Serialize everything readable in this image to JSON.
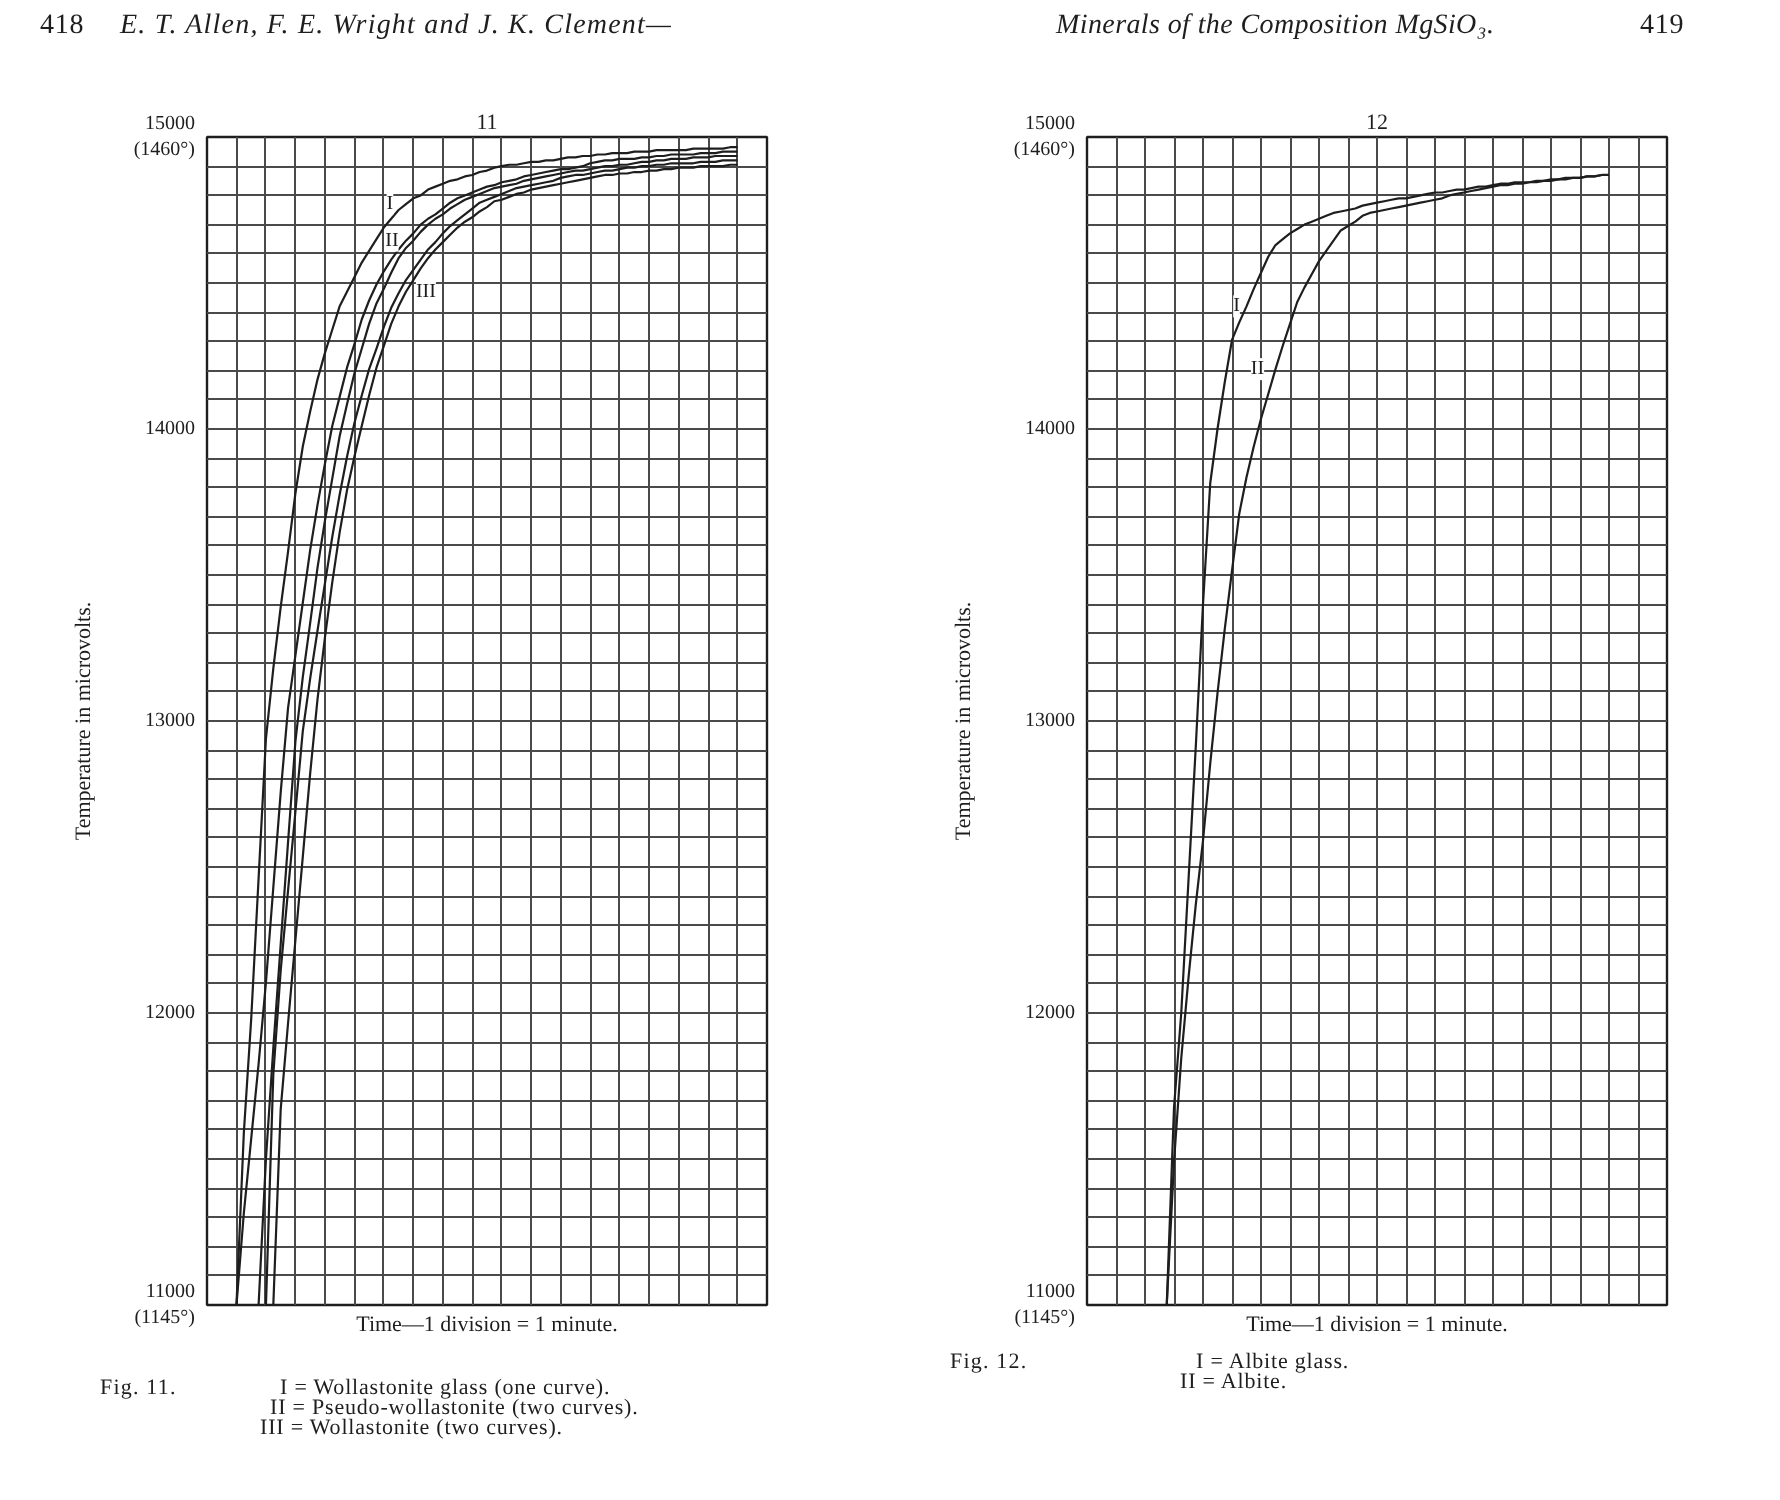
{
  "chart_data": [
    {
      "type": "line",
      "title": "11",
      "xlabel": "Time—1 division = 1 minute.",
      "ylabel": "Temperature in microvolts.",
      "categories": [
        null,
        null,
        null,
        null,
        null,
        null,
        null,
        null,
        null,
        null,
        null,
        null,
        null,
        null,
        null,
        null,
        null,
        null,
        null,
        null,
        null,
        null,
        null,
        null,
        null,
        null,
        null,
        null,
        null,
        null,
        null,
        null,
        null,
        null,
        null,
        null,
        null,
        null,
        null,
        null,
        null,
        null,
        null,
        null,
        null,
        null,
        null,
        null,
        null,
        null,
        null,
        null,
        null,
        null,
        null,
        null,
        null,
        null,
        null,
        null,
        null,
        null,
        null,
        null,
        null,
        null,
        null,
        null,
        null,
        null,
        null,
        null,
        null,
        null,
        null,
        null,
        null
      ],
      "ylim": [
        11000,
        15000
      ],
      "yticks": [
        {
          "value": 11000,
          "label": "11000\n(1145°)"
        },
        {
          "value": 11100,
          "label": null
        },
        {
          "value": 11200,
          "label": null
        },
        {
          "value": 11300,
          "label": null
        },
        {
          "value": 11400,
          "label": null
        },
        {
          "value": 11500,
          "label": null
        },
        {
          "value": 11600,
          "label": null
        },
        {
          "value": 11700,
          "label": null
        },
        {
          "value": 11800,
          "label": null
        },
        {
          "value": 11900,
          "label": null
        },
        12000,
        {
          "value": 12100,
          "label": null
        },
        {
          "value": 12200,
          "label": null
        },
        {
          "value": 12300,
          "label": null
        },
        {
          "value": 12400,
          "label": null
        },
        {
          "value": 12500,
          "label": null
        },
        {
          "value": 12600,
          "label": null
        },
        {
          "value": 12700,
          "label": null
        },
        {
          "value": 12800,
          "label": null
        },
        {
          "value": 12900,
          "label": null
        },
        13000,
        {
          "value": 13100,
          "label": null
        },
        {
          "value": 13200,
          "label": null
        },
        {
          "value": 13300,
          "label": null
        },
        {
          "value": 13400,
          "label": null
        },
        {
          "value": 13500,
          "label": null
        },
        {
          "value": 13600,
          "label": null
        },
        {
          "value": 13700,
          "label": null
        },
        {
          "value": 13800,
          "label": null
        },
        {
          "value": 13900,
          "label": null
        },
        14000,
        {
          "value": 14100,
          "label": null
        },
        {
          "value": 14200,
          "label": null
        },
        {
          "value": 14300,
          "label": null
        },
        {
          "value": 14400,
          "label": null
        },
        {
          "value": 14500,
          "label": null
        },
        {
          "value": 14600,
          "label": null
        },
        {
          "value": 14700,
          "label": null
        },
        {
          "value": 14800,
          "label": null
        },
        {
          "value": 14900,
          "label": null
        },
        {
          "value": 15000,
          "label": "15000\n(1460°)"
        }
      ],
      "grid": true,
      "tick_labels": "y",
      "series": [
        {
          "name": "I",
          "color": "#1e1e1e",
          "values": [
            null,
            null,
            null,
            null,
            11000,
            11590,
            11980,
            12460,
            12940,
            13180,
            13390,
            13580,
            13780,
            13940,
            14060,
            14170,
            14260,
            14340,
            14420,
            14470,
            14520,
            14570,
            14610,
            14650,
            14690,
            14720,
            14750,
            14770,
            14790,
            14800,
            14820,
            14830,
            14840,
            14850,
            14855,
            14865,
            14870,
            14880,
            14885,
            14895,
            14900,
            14905,
            14905,
            14910,
            14915,
            14915,
            14920,
            14920,
            14925,
            14930,
            14930,
            14935,
            14935,
            14940,
            14940,
            14945,
            14945,
            14945,
            14950,
            14950,
            14950,
            14955,
            14955,
            14955,
            14955,
            14955,
            14960,
            14960,
            14960,
            14960,
            14960,
            14965,
            14965,
            null,
            null,
            null,
            null
          ]
        },
        {
          "name": "II",
          "color": "#1e1e1e",
          "values": [
            null,
            null,
            null,
            null,
            11000,
            11315,
            11570,
            11825,
            12105,
            12430,
            12755,
            13045,
            13225,
            13405,
            13585,
            13740,
            13880,
            14010,
            14110,
            14210,
            14290,
            14375,
            14440,
            14495,
            14540,
            14580,
            14615,
            14645,
            14670,
            14700,
            14720,
            14735,
            14755,
            14775,
            14790,
            14800,
            14810,
            14820,
            14830,
            14835,
            14845,
            14850,
            14855,
            14865,
            14870,
            14875,
            14880,
            14885,
            14890,
            14890,
            14895,
            14900,
            14910,
            14915,
            14920,
            14920,
            14925,
            14925,
            14925,
            14930,
            14930,
            14935,
            14935,
            14940,
            14940,
            14940,
            14940,
            14945,
            14945,
            14945,
            14950,
            14950,
            14950,
            null,
            null,
            null,
            null
          ]
        },
        {
          "color": "#1e1e1e",
          "values": [
            null,
            null,
            null,
            null,
            null,
            null,
            null,
            11000,
            11500,
            11880,
            12235,
            12585,
            12930,
            13150,
            13335,
            13525,
            13685,
            13830,
            13975,
            14085,
            14190,
            14275,
            14360,
            14430,
            14480,
            14535,
            14585,
            14620,
            14645,
            14675,
            14700,
            14720,
            14735,
            14755,
            14770,
            14785,
            14795,
            14805,
            14815,
            14825,
            14830,
            14835,
            14840,
            14850,
            14855,
            14860,
            14865,
            14870,
            14875,
            14880,
            14885,
            14885,
            14890,
            14895,
            14900,
            14900,
            14905,
            14905,
            14910,
            14915,
            14915,
            14920,
            14920,
            14925,
            14925,
            14925,
            14930,
            14930,
            14930,
            14935,
            14935,
            14935,
            14935,
            null,
            null,
            null,
            null
          ]
        },
        {
          "color": "#1e1e1e",
          "values": [
            null,
            null,
            null,
            null,
            null,
            null,
            null,
            null,
            11000,
            11790,
            12145,
            12420,
            12690,
            12965,
            13145,
            13310,
            13470,
            13630,
            13775,
            13905,
            14020,
            14115,
            14205,
            14275,
            14350,
            14415,
            14465,
            14510,
            14545,
            14580,
            14615,
            14640,
            14670,
            14695,
            14715,
            14735,
            14755,
            14775,
            14785,
            14795,
            14805,
            14815,
            14825,
            14830,
            14835,
            14840,
            14845,
            14850,
            14860,
            14865,
            14870,
            14870,
            14875,
            14880,
            14885,
            14885,
            14890,
            14895,
            14895,
            14900,
            14900,
            14905,
            14905,
            14910,
            14910,
            14910,
            14910,
            14915,
            14915,
            14915,
            14920,
            14920,
            14920,
            null,
            null,
            null,
            null
          ]
        },
        {
          "name": "III",
          "color": "#1e1e1e",
          "values": [
            null,
            null,
            null,
            null,
            null,
            null,
            null,
            null,
            null,
            11000,
            11670,
            11965,
            12250,
            12535,
            12820,
            13075,
            13285,
            13475,
            13645,
            13790,
            13905,
            14010,
            14115,
            14210,
            14285,
            14360,
            14420,
            14470,
            14510,
            14550,
            14585,
            14615,
            14640,
            14665,
            14690,
            14710,
            14725,
            14745,
            14760,
            14780,
            14785,
            14795,
            14805,
            14810,
            14820,
            14825,
            14830,
            14835,
            14840,
            14845,
            14850,
            14855,
            14860,
            14865,
            14870,
            14870,
            14875,
            14875,
            14880,
            14880,
            14885,
            14885,
            14890,
            14890,
            14895,
            14895,
            14895,
            14900,
            14900,
            14900,
            14900,
            14905,
            14905,
            null,
            null,
            null,
            null
          ]
        }
      ],
      "annotations": [
        "418",
        "E. T. Allen, F. E. Wright and J. K. Clement—",
        "Fig. 11.",
        "I = Wollastonite glass (one curve).",
        "II = Pseudo-wollastonite (two curves).",
        "III = Wollastonite (two curves)."
      ]
    },
    {
      "type": "line",
      "title": "12",
      "xlabel": "Time—1 division = 1 minute.",
      "ylabel": "Temperature in microvolts.",
      "categories": [
        null,
        null,
        null,
        null,
        null,
        null,
        null,
        null,
        null,
        null,
        null,
        null,
        null,
        null,
        null,
        null,
        null,
        null,
        null,
        null,
        null,
        null,
        null,
        null,
        null,
        null,
        null,
        null,
        null,
        null,
        null,
        null,
        null,
        null,
        null,
        null,
        null,
        null,
        null,
        null,
        null,
        null,
        null,
        null,
        null,
        null,
        null,
        null,
        null,
        null,
        null,
        null,
        null,
        null,
        null,
        null,
        null,
        null,
        null,
        null,
        null,
        null,
        null,
        null,
        null,
        null,
        null,
        null,
        null,
        null,
        null,
        null,
        null,
        null,
        null,
        null,
        null,
        null,
        null,
        null,
        null
      ],
      "ylim": [
        11000,
        15000
      ],
      "yticks": [
        {
          "value": 11000,
          "label": "11000\n(1145°)"
        },
        {
          "value": 11100,
          "label": null
        },
        {
          "value": 11200,
          "label": null
        },
        {
          "value": 11300,
          "label": null
        },
        {
          "value": 11400,
          "label": null
        },
        {
          "value": 11500,
          "label": null
        },
        {
          "value": 11600,
          "label": null
        },
        {
          "value": 11700,
          "label": null
        },
        {
          "value": 11800,
          "label": null
        },
        {
          "value": 11900,
          "label": null
        },
        12000,
        {
          "value": 12100,
          "label": null
        },
        {
          "value": 12200,
          "label": null
        },
        {
          "value": 12300,
          "label": null
        },
        {
          "value": 12400,
          "label": null
        },
        {
          "value": 12500,
          "label": null
        },
        {
          "value": 12600,
          "label": null
        },
        {
          "value": 12700,
          "label": null
        },
        {
          "value": 12800,
          "label": null
        },
        {
          "value": 12900,
          "label": null
        },
        13000,
        {
          "value": 13100,
          "label": null
        },
        {
          "value": 13200,
          "label": null
        },
        {
          "value": 13300,
          "label": null
        },
        {
          "value": 13400,
          "label": null
        },
        {
          "value": 13500,
          "label": null
        },
        {
          "value": 13600,
          "label": null
        },
        {
          "value": 13700,
          "label": null
        },
        {
          "value": 13800,
          "label": null
        },
        {
          "value": 13900,
          "label": null
        },
        14000,
        {
          "value": 14100,
          "label": null
        },
        {
          "value": 14200,
          "label": null
        },
        {
          "value": 14300,
          "label": null
        },
        {
          "value": 14400,
          "label": null
        },
        {
          "value": 14500,
          "label": null
        },
        {
          "value": 14600,
          "label": null
        },
        {
          "value": 14700,
          "label": null
        },
        {
          "value": 14800,
          "label": null
        },
        {
          "value": 14900,
          "label": null
        },
        {
          "value": 15000,
          "label": "15000\n(1460°)"
        }
      ],
      "grid": true,
      "tick_labels": "y",
      "series": [
        {
          "name": "I",
          "color": "#1e1e1e",
          "values": [
            null,
            null,
            null,
            null,
            null,
            null,
            null,
            null,
            null,
            null,
            null,
            11000,
            11675,
            12000,
            12455,
            12910,
            13400,
            13815,
            14000,
            14160,
            14305,
            14365,
            14420,
            14480,
            14535,
            14590,
            14630,
            14650,
            14670,
            14685,
            14700,
            14710,
            14720,
            14730,
            14740,
            14745,
            14750,
            14755,
            14765,
            14770,
            14775,
            14780,
            14785,
            14790,
            14790,
            14795,
            14800,
            14805,
            14810,
            14810,
            14815,
            14820,
            14820,
            14825,
            14830,
            14830,
            14835,
            14840,
            14840,
            14845,
            14845,
            14845,
            14850,
            14850,
            14855,
            14855,
            14860,
            14860,
            14860,
            14865,
            14865,
            14870,
            14870,
            null,
            null,
            null,
            null,
            null,
            null,
            null,
            null
          ]
        },
        {
          "name": "II",
          "color": "#1e1e1e",
          "values": [
            null,
            null,
            null,
            null,
            null,
            null,
            null,
            null,
            null,
            null,
            null,
            11000,
            11490,
            11845,
            12120,
            12370,
            12590,
            12855,
            13095,
            13315,
            13515,
            13710,
            13835,
            13940,
            14035,
            14120,
            14205,
            14285,
            14360,
            14435,
            14485,
            14530,
            14575,
            14610,
            14645,
            14680,
            14695,
            14710,
            14730,
            14740,
            14745,
            14750,
            14755,
            14760,
            14765,
            14770,
            14775,
            14780,
            14785,
            14790,
            14800,
            14805,
            14810,
            14815,
            14820,
            14825,
            14830,
            14835,
            14835,
            14840,
            14840,
            14845,
            14845,
            14850,
            14850,
            14855,
            14855,
            14860,
            14860,
            14865,
            14865,
            14870,
            null,
            null,
            null,
            null,
            null,
            null,
            null,
            null,
            null
          ]
        }
      ],
      "annotations": [
        "Minerals of the Composition MgSiO₃.",
        "419",
        "Fig. 12.",
        "I = Albite glass.",
        "II = Albite."
      ]
    }
  ]
}
